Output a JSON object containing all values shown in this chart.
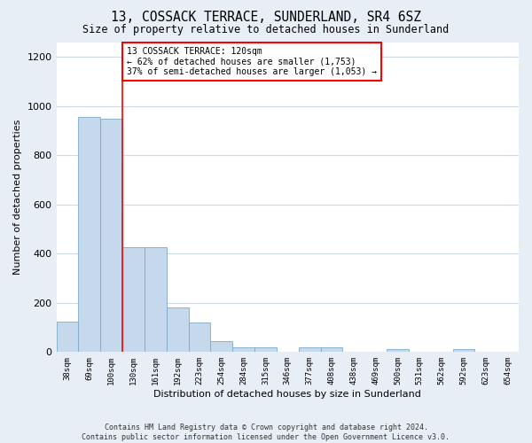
{
  "title": "13, COSSACK TERRACE, SUNDERLAND, SR4 6SZ",
  "subtitle": "Size of property relative to detached houses in Sunderland",
  "xlabel": "Distribution of detached houses by size in Sunderland",
  "ylabel": "Number of detached properties",
  "categories": [
    "38sqm",
    "69sqm",
    "100sqm",
    "130sqm",
    "161sqm",
    "192sqm",
    "223sqm",
    "254sqm",
    "284sqm",
    "315sqm",
    "346sqm",
    "377sqm",
    "408sqm",
    "438sqm",
    "469sqm",
    "500sqm",
    "531sqm",
    "562sqm",
    "592sqm",
    "623sqm",
    "654sqm"
  ],
  "values": [
    125,
    955,
    948,
    428,
    428,
    183,
    120,
    43,
    20,
    20,
    0,
    20,
    18,
    0,
    0,
    12,
    0,
    0,
    12,
    0,
    0
  ],
  "bar_color": "#c5d8ec",
  "bar_edge_color": "#7aaac8",
  "property_line_x": 2.5,
  "annotation_text": "13 COSSACK TERRACE: 120sqm\n← 62% of detached houses are smaller (1,753)\n37% of semi-detached houses are larger (1,053) →",
  "ylim": [
    0,
    1260
  ],
  "yticks": [
    0,
    200,
    400,
    600,
    800,
    1000,
    1200
  ],
  "footer1": "Contains HM Land Registry data © Crown copyright and database right 2024.",
  "footer2": "Contains public sector information licensed under the Open Government Licence v3.0.",
  "bg_color": "#e8eef5",
  "plot_bg_color": "#ffffff",
  "grid_color": "#d0d8e8"
}
